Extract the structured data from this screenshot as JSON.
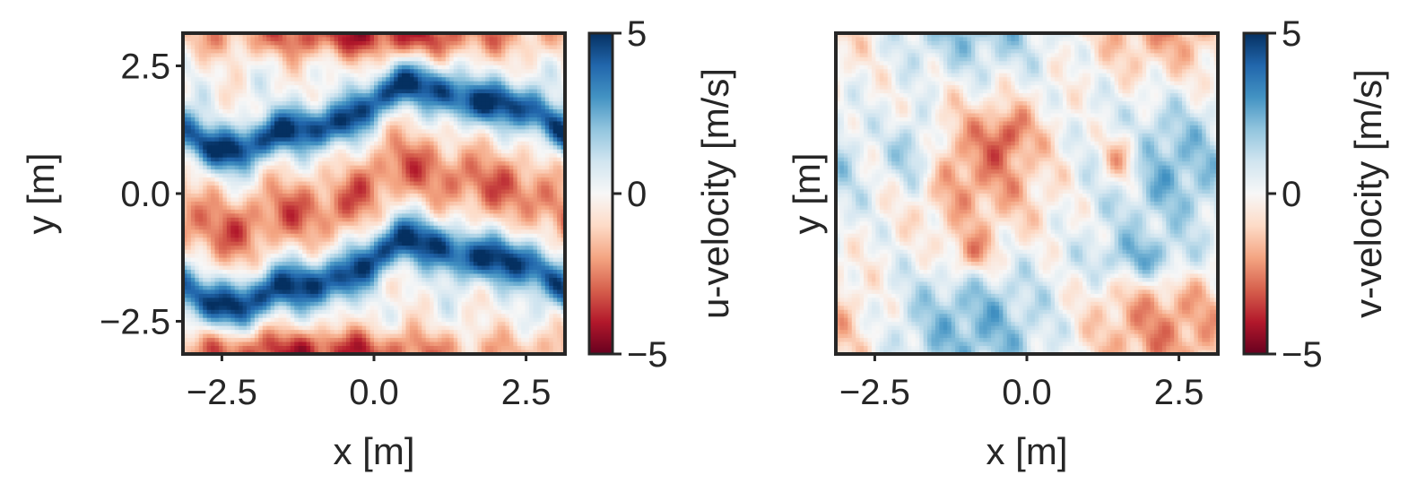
{
  "chart_data": [
    {
      "type": "heatmap",
      "field": "u",
      "xlabel": "x [m]",
      "ylabel": "y [m]",
      "xlim": [
        -3.14,
        3.14
      ],
      "ylim": [
        -3.14,
        3.14
      ],
      "xticks": [
        -2.5,
        0.0,
        2.5
      ],
      "xtick_labels": [
        "−2.5",
        "0.0",
        "2.5"
      ],
      "yticks": [
        -2.5,
        0.0,
        2.5
      ],
      "ytick_labels": [
        "−2.5",
        "0.0",
        "2.5"
      ],
      "show_yticks": true,
      "colormap": "RdBu",
      "colorbar": {
        "label": "u-velocity [m/s]",
        "vmin": -5,
        "vmax": 5,
        "ticks": [
          -5,
          0,
          5
        ],
        "tick_labels": [
          "−5",
          "0",
          "5"
        ]
      },
      "grid": false
    },
    {
      "type": "heatmap",
      "field": "v",
      "xlabel": "x [m]",
      "ylabel": "y [m]",
      "xlim": [
        -3.14,
        3.14
      ],
      "ylim": [
        -3.14,
        3.14
      ],
      "xticks": [
        -2.5,
        0.0,
        2.5
      ],
      "xtick_labels": [
        "−2.5",
        "0.0",
        "2.5"
      ],
      "yticks": [],
      "ytick_labels": [],
      "show_yticks": false,
      "colormap": "RdBu",
      "colorbar": {
        "label": "v-velocity [m/s]",
        "vmin": -5,
        "vmax": 5,
        "ticks": [
          -5,
          0,
          5
        ],
        "tick_labels": [
          "−5",
          "0",
          "5"
        ]
      },
      "grid": false
    }
  ],
  "colors": {
    "cmap_low": "#67001f",
    "cmap_mid": "#f7f7f7",
    "cmap_high": "#053061",
    "axis": "#262626",
    "background": "#ffffff"
  }
}
